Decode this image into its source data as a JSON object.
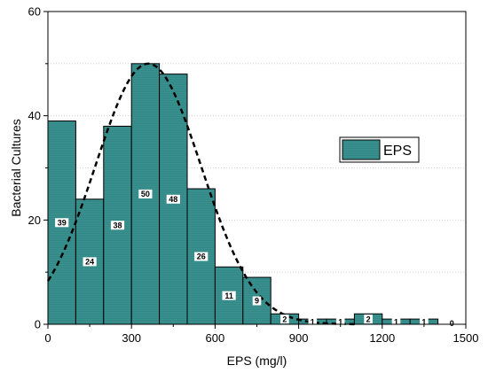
{
  "chart_data": {
    "type": "bar",
    "title": "",
    "xlabel": "EPS (mg/l)",
    "ylabel": "Bacterial Cultures",
    "xlim": [
      0,
      1500
    ],
    "ylim": [
      0,
      60
    ],
    "x_ticks": [
      "0",
      "300",
      "600",
      "900",
      "1200",
      "1500"
    ],
    "y_ticks": [
      "0",
      "20",
      "40",
      "60"
    ],
    "bin_edges": [
      0,
      100,
      200,
      300,
      400,
      500,
      600,
      700,
      800,
      900,
      1000,
      1100,
      1200,
      1300,
      1400,
      1500
    ],
    "categories": [
      "0-100",
      "100-200",
      "200-300",
      "300-400",
      "400-500",
      "500-600",
      "600-700",
      "700-800",
      "800-900",
      "900-1000",
      "1000-1100",
      "1100-1200",
      "1200-1300",
      "1300-1400",
      "1400-1500"
    ],
    "series": [
      {
        "name": "EPS",
        "values": [
          39,
          24,
          38,
          50,
          48,
          26,
          11,
          9,
          2,
          1,
          1,
          2,
          1,
          1,
          0
        ],
        "labels": [
          "39",
          "24",
          "38",
          "50",
          "48",
          "26",
          "11",
          "9",
          "2",
          "1",
          "1",
          "2",
          "1",
          "1",
          "0"
        ]
      }
    ],
    "fit_curve": {
      "type": "normal",
      "style": "dashed",
      "mean": 360,
      "sd": 190,
      "peak": 50
    },
    "grid": {
      "horizontal": true,
      "style": "dotted"
    },
    "legend": {
      "position": "right",
      "entries": [
        "EPS"
      ]
    },
    "colors": {
      "bar_fill": "#3a9290",
      "bar_stroke": "#000000",
      "curve": "#000000",
      "grid": "#cccccc"
    }
  }
}
